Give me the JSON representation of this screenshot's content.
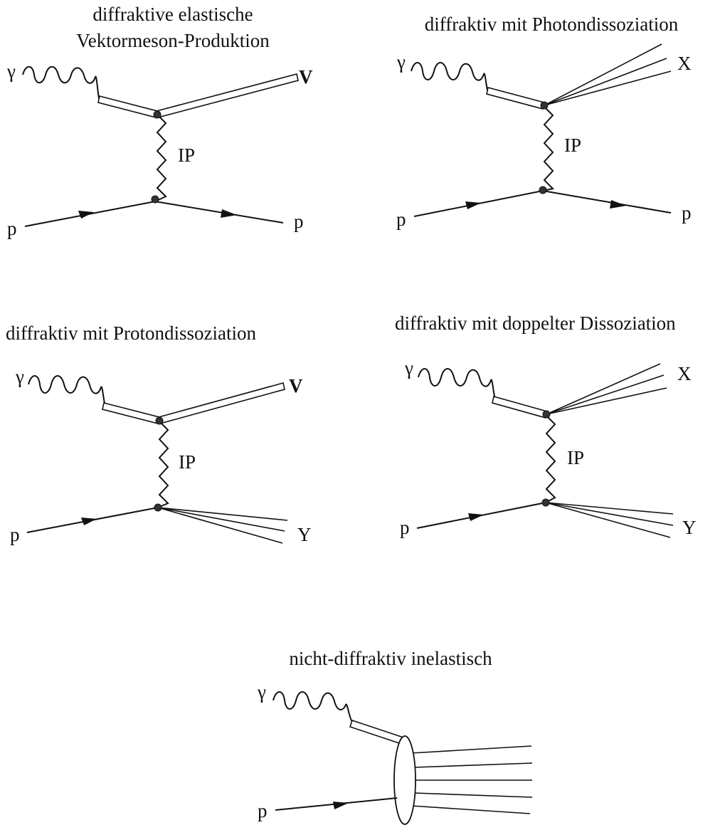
{
  "diagrams": [
    {
      "title_lines": [
        "diffraktive elastische",
        "Vektormeson-Produktion"
      ],
      "labels": {
        "photon": "γ",
        "upper_out": "V",
        "exchange": "IP",
        "proton_in": "p",
        "lower_out": "p"
      }
    },
    {
      "title_lines": [
        "diffraktiv mit Photondissoziation"
      ],
      "labels": {
        "photon": "γ",
        "upper_out": "X",
        "exchange": "IP",
        "proton_in": "p",
        "lower_out": "p"
      }
    },
    {
      "title_lines": [
        "diffraktiv mit Protondissoziation"
      ],
      "labels": {
        "photon": "γ",
        "upper_out": "V",
        "exchange": "IP",
        "proton_in": "p",
        "lower_out": "Y"
      }
    },
    {
      "title_lines": [
        "diffraktiv mit doppelter Dissoziation"
      ],
      "labels": {
        "photon": "γ",
        "upper_out": "X",
        "exchange": "IP",
        "proton_in": "p",
        "lower_out": "Y"
      }
    },
    {
      "title_lines": [
        "nicht-diffraktiv inelastisch"
      ],
      "labels": {
        "photon": "γ",
        "proton_in": "p"
      }
    }
  ]
}
